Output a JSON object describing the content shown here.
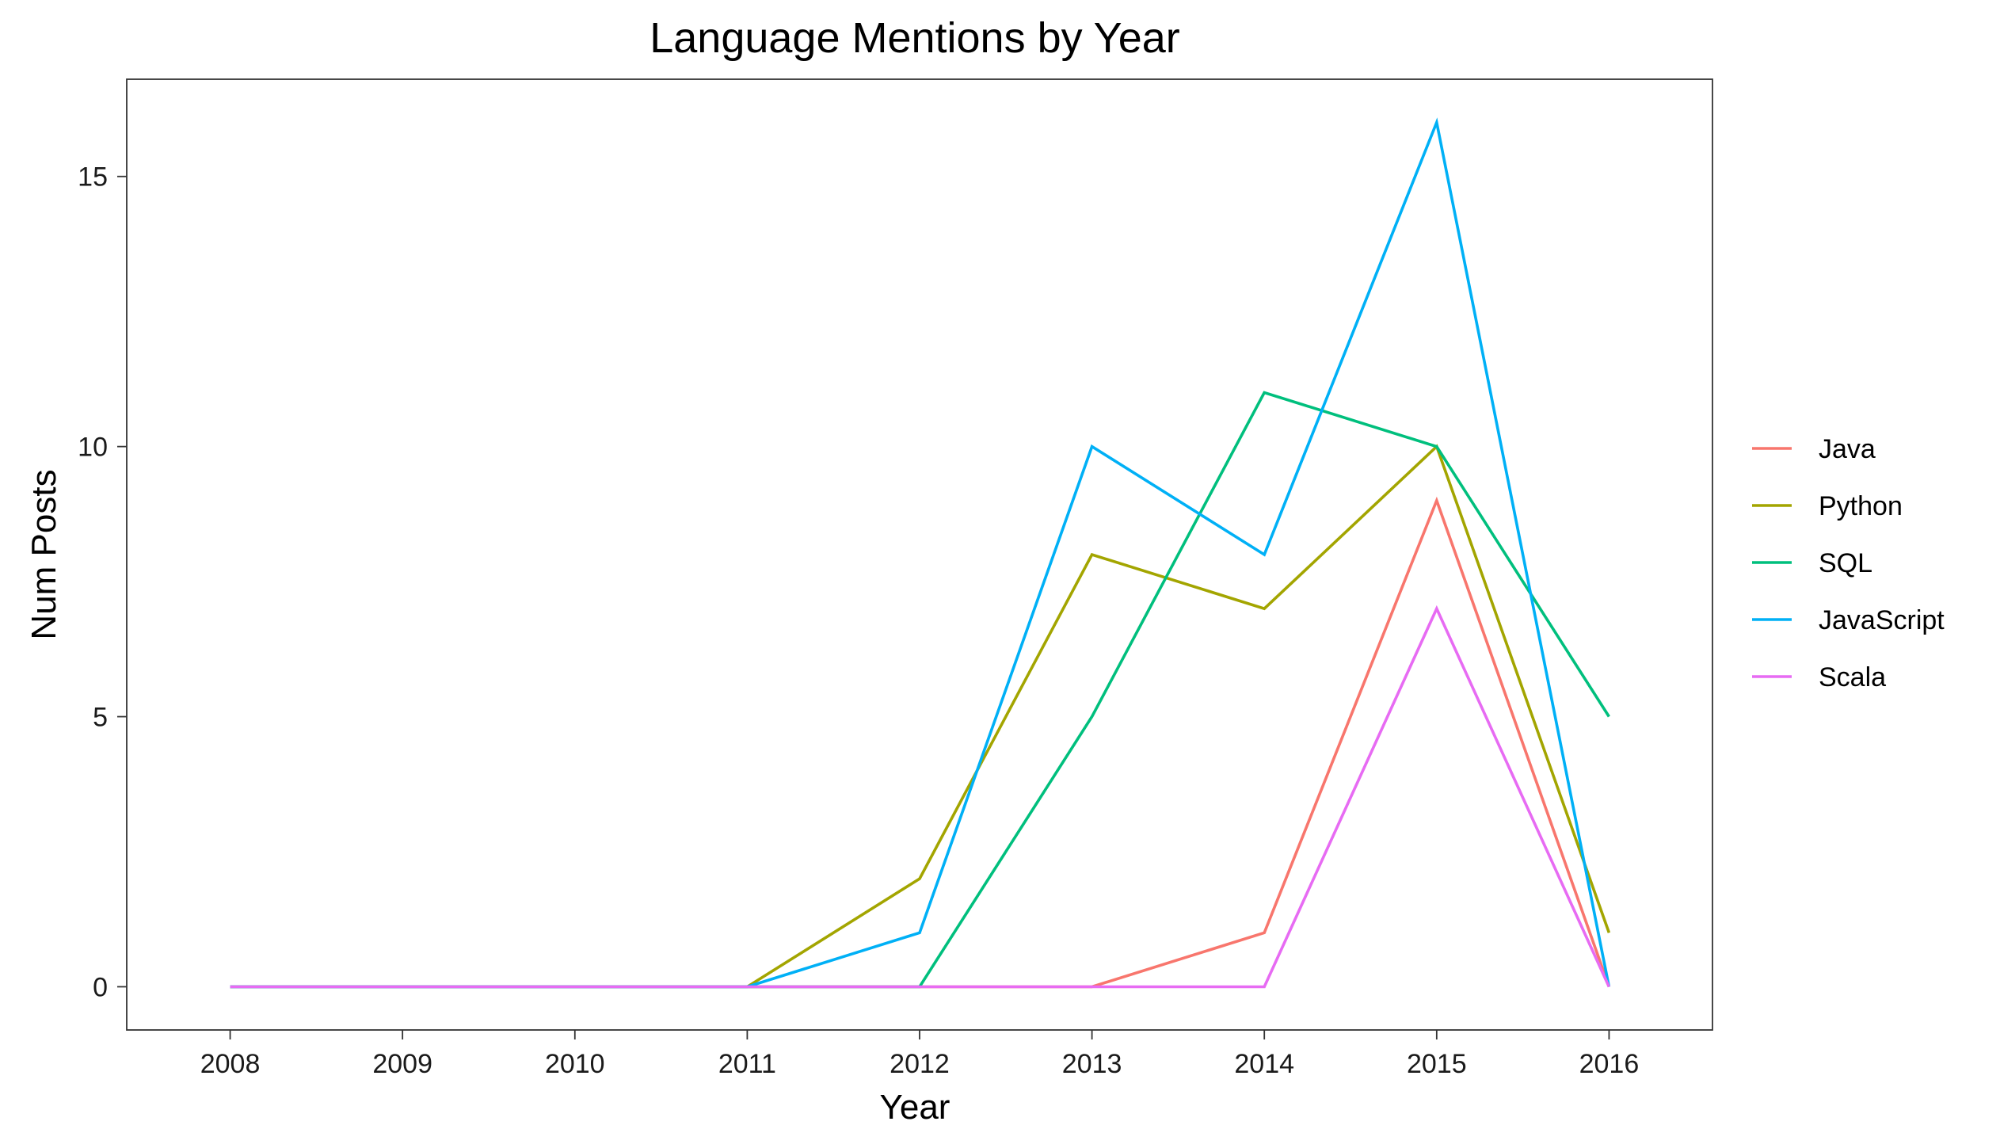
{
  "chart_data": {
    "type": "line",
    "title": "Language Mentions by Year",
    "xlabel": "Year",
    "ylabel": "Num Posts",
    "x": [
      2008,
      2009,
      2010,
      2011,
      2012,
      2013,
      2014,
      2015,
      2016
    ],
    "x_tick_labels": [
      "2008",
      "2009",
      "2010",
      "2011",
      "2012",
      "2013",
      "2014",
      "2015",
      "2016"
    ],
    "y_ticks": [
      0,
      5,
      10,
      15
    ],
    "y_tick_labels": [
      "0",
      "5",
      "10",
      "15"
    ],
    "xlim": [
      2007.4,
      2016.6
    ],
    "ylim": [
      -0.8,
      16.8
    ],
    "grid": false,
    "legend_position": "right",
    "series": [
      {
        "name": "Java",
        "color": "#F8766D",
        "values": [
          0,
          0,
          0,
          0,
          0,
          0,
          1,
          9,
          0
        ]
      },
      {
        "name": "Python",
        "color": "#A3A500",
        "values": [
          0,
          0,
          0,
          0,
          2,
          8,
          7,
          10,
          1
        ]
      },
      {
        "name": "SQL",
        "color": "#00BF7D",
        "values": [
          0,
          0,
          0,
          0,
          0,
          5,
          11,
          10,
          5
        ]
      },
      {
        "name": "JavaScript",
        "color": "#00B0F6",
        "values": [
          0,
          0,
          0,
          0,
          1,
          10,
          8,
          16,
          0
        ]
      },
      {
        "name": "Scala",
        "color": "#E76BF3",
        "values": [
          0,
          0,
          0,
          0,
          0,
          0,
          0,
          7,
          0
        ]
      }
    ]
  }
}
